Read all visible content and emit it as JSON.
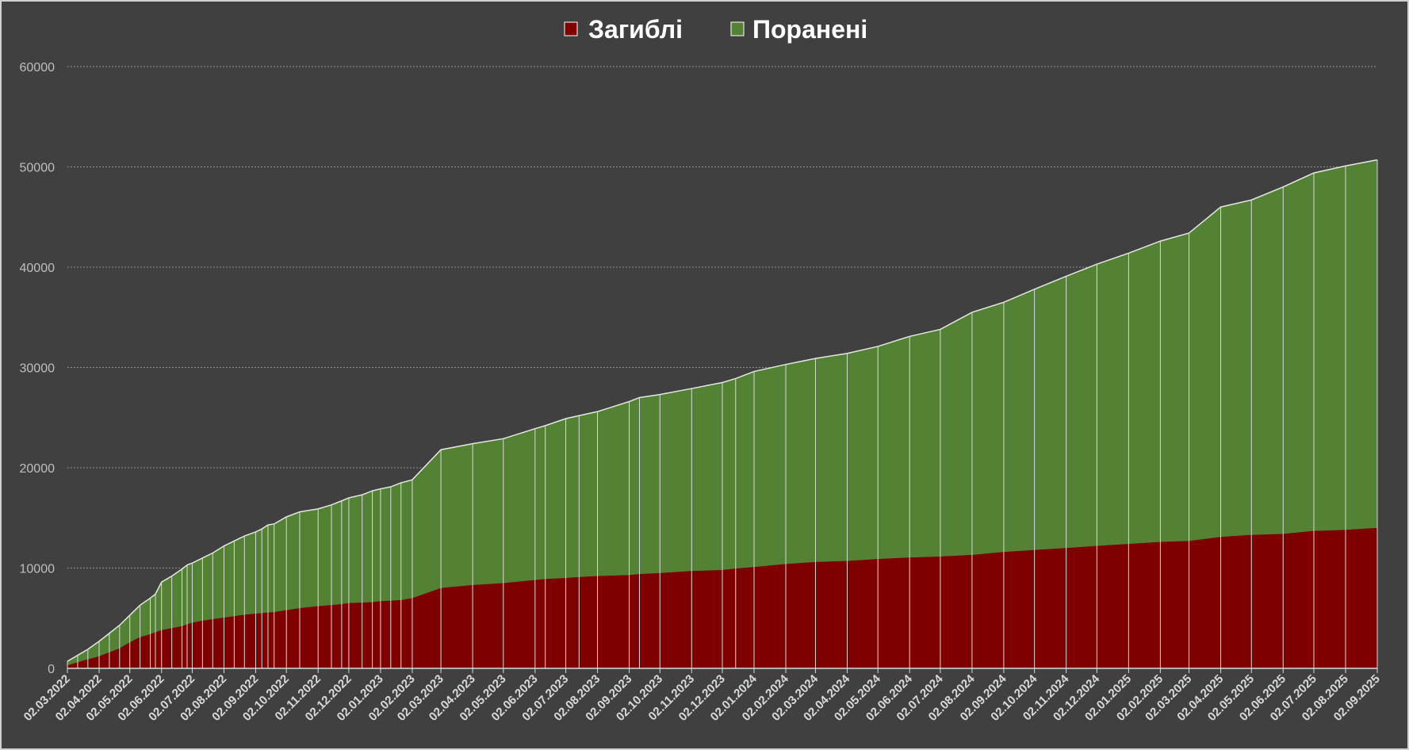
{
  "chart_data": {
    "type": "area",
    "stacked": true,
    "ylim": [
      0,
      60000
    ],
    "yticks": [
      "0",
      "10000",
      "20000",
      "30000",
      "40000",
      "50000",
      "60000"
    ],
    "grid": true,
    "legend_position": "top-center",
    "x_tick_labels": [
      "02.03.2022",
      "02.04.2022",
      "02.05.2022",
      "02.06.2022",
      "02.07.2022",
      "02.08.2022",
      "02.09.2022",
      "02.10.2022",
      "02.11.2022",
      "02.12.2022",
      "02.01.2023",
      "02.02.2023",
      "02.03.2023",
      "02.04.2023",
      "02.05.2023",
      "02.06.2023",
      "02.07.2023",
      "02.08.2023",
      "02.09.2023",
      "02.10.2023",
      "02.11.2023",
      "02.12.2023",
      "02.01.2024",
      "02.02.2024",
      "02.03.2024",
      "02.04.2024",
      "02.05.2024",
      "02.06.2024",
      "02.07.2024",
      "02.08.2024",
      "02.09.2024",
      "02.10.2024",
      "02.11.2024",
      "02.12.2024",
      "02.01.2025",
      "02.02.2025",
      "02.03.2025",
      "02.04.2025",
      "02.05.2025",
      "02.06.2025",
      "02.07.2025",
      "02.08.2025",
      "02.09.2025"
    ],
    "x": [
      "02.03.2022",
      "12.03.2022",
      "22.03.2022",
      "02.04.2022",
      "12.04.2022",
      "22.04.2022",
      "02.05.2022",
      "12.05.2022",
      "22.05.2022",
      "27.05.2022",
      "02.06.2022",
      "12.06.2022",
      "22.06.2022",
      "27.06.2022",
      "02.07.2022",
      "12.07.2022",
      "22.07.2022",
      "02.08.2022",
      "12.08.2022",
      "22.08.2022",
      "02.09.2022",
      "08.09.2022",
      "14.09.2022",
      "20.09.2022",
      "02.10.2022",
      "15.10.2022",
      "02.11.2022",
      "15.11.2022",
      "25.11.2022",
      "02.12.2022",
      "15.12.2022",
      "25.12.2022",
      "02.01.2023",
      "12.01.2023",
      "22.01.2023",
      "02.02.2023",
      "02.03.2023",
      "02.04.2023",
      "02.05.2023",
      "02.06.2023",
      "12.06.2023",
      "02.07.2023",
      "15.07.2023",
      "02.08.2023",
      "02.09.2023",
      "12.09.2023",
      "02.10.2023",
      "02.11.2023",
      "02.12.2023",
      "15.12.2023",
      "02.01.2024",
      "02.02.2024",
      "02.03.2024",
      "02.04.2024",
      "02.05.2024",
      "02.06.2024",
      "02.07.2024",
      "02.08.2024",
      "02.09.2024",
      "02.10.2024",
      "02.11.2024",
      "02.12.2024",
      "02.01.2025",
      "02.02.2025",
      "02.03.2025",
      "02.04.2025",
      "02.05.2025",
      "02.06.2025",
      "02.07.2025",
      "02.08.2025",
      "02.09.2025"
    ],
    "series": [
      {
        "name": "Загиблі",
        "color": "#7f0000",
        "values": [
          300,
          600,
          900,
          1200,
          1600,
          2000,
          2600,
          3100,
          3400,
          3600,
          3800,
          4000,
          4200,
          4400,
          4550,
          4750,
          4900,
          5050,
          5200,
          5350,
          5450,
          5500,
          5550,
          5600,
          5800,
          6000,
          6200,
          6300,
          6400,
          6500,
          6550,
          6600,
          6700,
          6750,
          6800,
          7000,
          8000,
          8300,
          8500,
          8800,
          8900,
          9000,
          9100,
          9200,
          9300,
          9400,
          9500,
          9700,
          9800,
          9950,
          10100,
          10400,
          10600,
          10700,
          10900,
          11050,
          11150,
          11300,
          11600,
          11800,
          12000,
          12200,
          12400,
          12600,
          12700,
          13100,
          13300,
          13400,
          13700,
          13800,
          14000
        ]
      },
      {
        "name": "Поранені",
        "color": "#548235",
        "values": [
          400,
          700,
          1000,
          1500,
          1900,
          2300,
          2700,
          3200,
          3600,
          3800,
          4800,
          5200,
          5700,
          5900,
          5950,
          6250,
          6600,
          7150,
          7500,
          7850,
          8150,
          8400,
          8750,
          8800,
          9300,
          9600,
          9700,
          10000,
          10300,
          10500,
          10750,
          11100,
          11200,
          11350,
          11700,
          11800,
          13800,
          14100,
          14400,
          15100,
          15300,
          15900,
          16100,
          16400,
          17300,
          17600,
          17800,
          18200,
          18700,
          18950,
          19500,
          19900,
          20300,
          20700,
          21200,
          22050,
          22650,
          24200,
          24900,
          26000,
          27100,
          28100,
          29000,
          30000,
          30700,
          32900,
          33400,
          34600,
          35700,
          36300,
          36700
        ]
      }
    ]
  }
}
